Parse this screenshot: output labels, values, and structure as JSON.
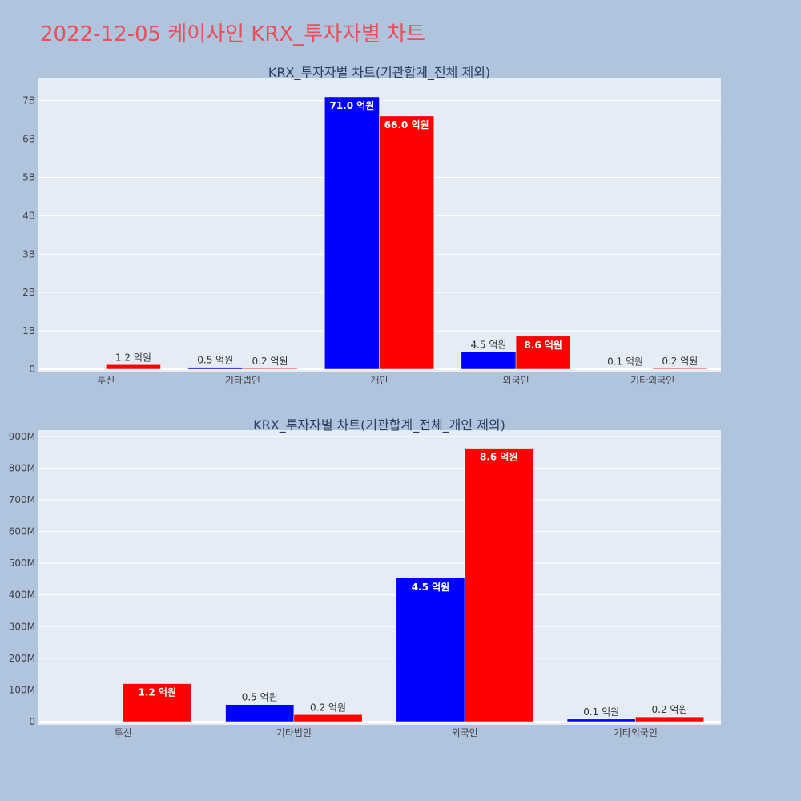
{
  "title": "2022-12-05 케이사인 KRX_투자자별 차트",
  "colors": {
    "series1": "#0000ff",
    "series2": "#ff0000",
    "plot_bg": "#e5ecf6",
    "page_bg": "#b0c4de"
  },
  "chart_data": [
    {
      "type": "bar",
      "title": "KRX_투자자별 차트(기관합계_전체 제외)",
      "categories": [
        "투신",
        "기타법인",
        "개인",
        "외국인",
        "기타외국인"
      ],
      "ylim": [
        0,
        7600000000
      ],
      "y_ticks": [
        0,
        1000000000,
        2000000000,
        3000000000,
        4000000000,
        5000000000,
        6000000000,
        7000000000
      ],
      "y_tick_labels": [
        "0",
        "1B",
        "2B",
        "3B",
        "4B",
        "5B",
        "6B",
        "7B"
      ],
      "grid": true,
      "series": [
        {
          "color": "#0000ff",
          "values": [
            0,
            50000000,
            7100000000,
            450000000,
            10000000
          ],
          "labels": [
            "",
            "0.5 억원",
            "71.0 억원",
            "4.5 억원",
            "0.1 억원"
          ]
        },
        {
          "color": "#ff0000",
          "values": [
            120000000,
            20000000,
            6600000000,
            860000000,
            20000000
          ],
          "labels": [
            "1.2 억원",
            "0.2 억원",
            "66.0 억원",
            "8.6 억원",
            "0.2 억원"
          ]
        }
      ]
    },
    {
      "type": "bar",
      "title": "KRX_투자자별 차트(기관합계_전체_개인 제외)",
      "categories": [
        "투신",
        "기타법인",
        "외국인",
        "기타외국인"
      ],
      "ylim": [
        0,
        920000000
      ],
      "y_ticks": [
        0,
        100000000,
        200000000,
        300000000,
        400000000,
        500000000,
        600000000,
        700000000,
        800000000,
        900000000
      ],
      "y_tick_labels": [
        "0",
        "100M",
        "200M",
        "300M",
        "400M",
        "500M",
        "600M",
        "700M",
        "800M",
        "900M"
      ],
      "grid": true,
      "series": [
        {
          "color": "#0000ff",
          "values": [
            0,
            54000000,
            453000000,
            8000000
          ],
          "labels": [
            "",
            "0.5 억원",
            "4.5 억원",
            "0.1 억원"
          ]
        },
        {
          "color": "#ff0000",
          "values": [
            120000000,
            22000000,
            863000000,
            15000000
          ],
          "labels": [
            "1.2 억원",
            "0.2 억원",
            "8.6 억원",
            "0.2 억원"
          ]
        }
      ]
    }
  ]
}
